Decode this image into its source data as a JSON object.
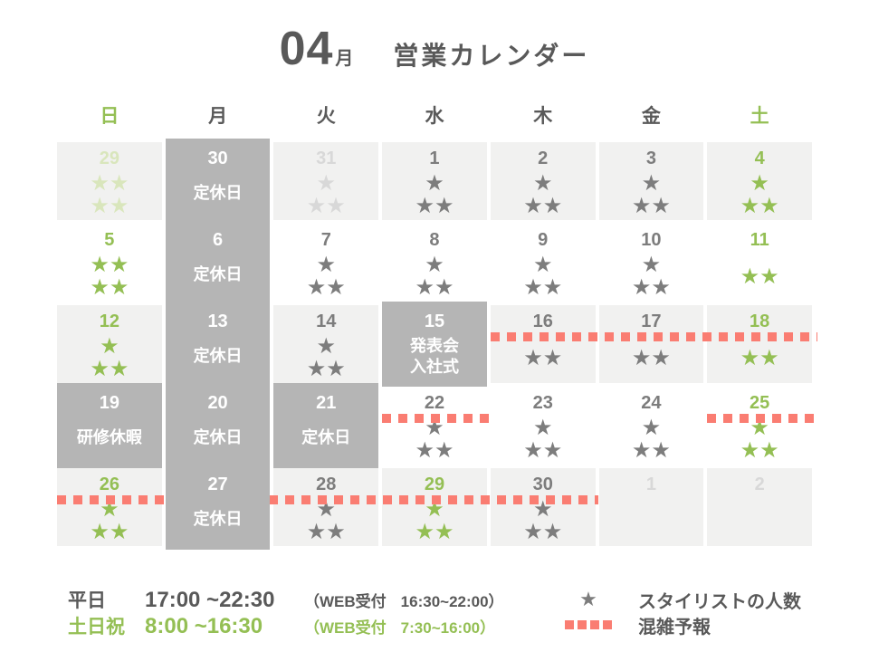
{
  "title": {
    "month": "04",
    "month_suffix": "月",
    "heading": "営業カレンダー"
  },
  "colors": {
    "dark": "#595959",
    "gray": "#7d7d7d",
    "green": "#94bf54",
    "faded_green": "#d9e6bc",
    "faded_gray": "#d8d8d8",
    "closed_bg": "#b5b5b5",
    "shade_bg": "#f1f1f0",
    "salmon": "#fa7d72"
  },
  "weekdays": [
    {
      "label": "日",
      "color": "green"
    },
    {
      "label": "月",
      "color": "dark"
    },
    {
      "label": "火",
      "color": "dark"
    },
    {
      "label": "水",
      "color": "dark"
    },
    {
      "label": "木",
      "color": "dark"
    },
    {
      "label": "金",
      "color": "dark"
    },
    {
      "label": "土",
      "color": "green"
    }
  ],
  "weeks": [
    [
      {
        "date": "29",
        "color": "faded-green",
        "stars": [
          "★★",
          "★★"
        ]
      },
      {
        "date": "30",
        "kind": "closed",
        "label_lines": [
          "定休日"
        ]
      },
      {
        "date": "31",
        "color": "faded-gray",
        "stars": [
          "★",
          "★★"
        ]
      },
      {
        "date": "1",
        "color": "gray",
        "stars": [
          "★",
          "★★"
        ]
      },
      {
        "date": "2",
        "color": "gray",
        "stars": [
          "★",
          "★★"
        ]
      },
      {
        "date": "3",
        "color": "gray",
        "stars": [
          "★",
          "★★"
        ]
      },
      {
        "date": "4",
        "color": "green",
        "stars": [
          "★",
          "★★"
        ]
      }
    ],
    [
      {
        "date": "5",
        "color": "green",
        "stars": [
          "★★",
          "★★"
        ]
      },
      {
        "date": "6",
        "kind": "closed",
        "label_lines": [
          "定休日"
        ]
      },
      {
        "date": "7",
        "color": "gray",
        "stars": [
          "★",
          "★★"
        ]
      },
      {
        "date": "8",
        "color": "gray",
        "stars": [
          "★",
          "★★"
        ]
      },
      {
        "date": "9",
        "color": "gray",
        "stars": [
          "★",
          "★★"
        ]
      },
      {
        "date": "10",
        "color": "gray",
        "stars": [
          "★",
          "★★"
        ]
      },
      {
        "date": "11",
        "color": "green",
        "stars": [
          "★★"
        ]
      }
    ],
    [
      {
        "date": "12",
        "color": "green",
        "stars": [
          "★",
          "★★"
        ]
      },
      {
        "date": "13",
        "kind": "closed",
        "label_lines": [
          "定休日"
        ]
      },
      {
        "date": "14",
        "color": "gray",
        "stars": [
          "★",
          "★★"
        ]
      },
      {
        "date": "15",
        "kind": "closed",
        "label_lines": [
          "発表会",
          "入社式"
        ]
      },
      {
        "date": "16",
        "color": "gray",
        "stars": [
          "★★"
        ]
      },
      {
        "date": "17",
        "color": "gray",
        "stars": [
          "★★"
        ]
      },
      {
        "date": "18",
        "color": "green",
        "stars": [
          "★★"
        ]
      }
    ],
    [
      {
        "date": "19",
        "kind": "closed",
        "label_lines": [
          "研修休暇"
        ]
      },
      {
        "date": "20",
        "kind": "closed",
        "label_lines": [
          "定休日"
        ]
      },
      {
        "date": "21",
        "kind": "closed",
        "label_lines": [
          "定休日"
        ]
      },
      {
        "date": "22",
        "color": "gray",
        "stars": [
          "★",
          "★★"
        ]
      },
      {
        "date": "23",
        "color": "gray",
        "stars": [
          "★",
          "★★"
        ]
      },
      {
        "date": "24",
        "color": "gray",
        "stars": [
          "★",
          "★★"
        ]
      },
      {
        "date": "25",
        "color": "green",
        "stars": [
          "★",
          "★★"
        ]
      }
    ],
    [
      {
        "date": "26",
        "color": "green",
        "stars": [
          "★",
          "★★"
        ]
      },
      {
        "date": "27",
        "kind": "closed",
        "label_lines": [
          "定休日"
        ]
      },
      {
        "date": "28",
        "color": "gray",
        "stars": [
          "★",
          "★★"
        ]
      },
      {
        "date": "29",
        "color": "green",
        "stars": [
          "★",
          "★★"
        ]
      },
      {
        "date": "30",
        "color": "gray",
        "stars": [
          "★",
          "★★"
        ]
      },
      {
        "date": "1",
        "color": "faded-gray",
        "stars": []
      },
      {
        "date": "2",
        "color": "faded-gray",
        "stars": []
      }
    ]
  ],
  "congestion_lines": [
    {
      "week": 3,
      "from_col": 5,
      "to_col": 7,
      "overshoot": 6
    },
    {
      "week": 4,
      "from_col": 4,
      "to_col": 4,
      "overshoot": 8
    },
    {
      "week": 4,
      "from_col": 7,
      "to_col": 7,
      "overshoot": 6
    },
    {
      "week": 5,
      "from_col": 1,
      "to_col": 5,
      "overshoot": 3
    }
  ],
  "footer": {
    "hours": [
      {
        "day_label": "平日",
        "time": "17:00 ~22:30",
        "web_label": "（WEB受付",
        "web_time": "16:30~22:00）"
      },
      {
        "day_label": "土日祝",
        "time": "8:00 ~16:30",
        "web_label": "（WEB受付",
        "web_time": "7:30~16:00）"
      }
    ],
    "legend": [
      {
        "symbol": "★",
        "label": "スタイリストの人数"
      },
      {
        "symbol": "dots",
        "label": "混雑予報"
      }
    ]
  }
}
